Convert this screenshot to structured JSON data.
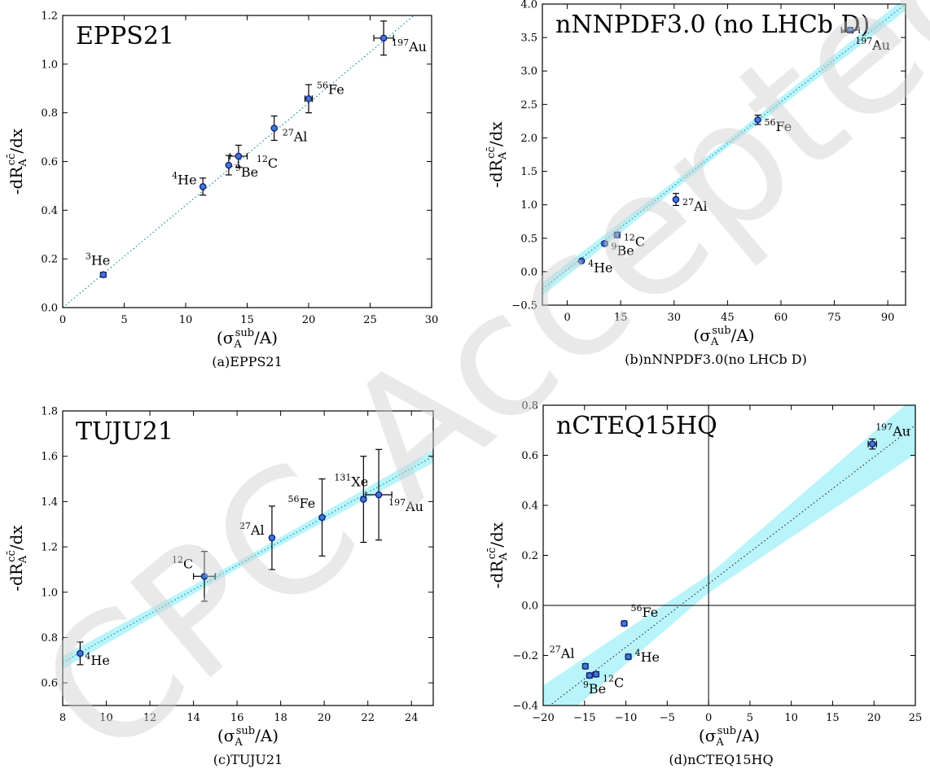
{
  "chart_data": [
    {
      "type": "scatter",
      "panel": "a",
      "title": "EPPS21",
      "caption": "(a)EPPS21",
      "xlabel": "(σ_A^sub/A)",
      "ylabel": "-dR_A^cc̄/dx",
      "xlim": [
        0,
        30
      ],
      "ylim": [
        0.0,
        1.2
      ],
      "xticks": [
        0,
        5,
        10,
        15,
        20,
        25,
        30
      ],
      "yticks": [
        0.0,
        0.2,
        0.4,
        0.6,
        0.8,
        1.0,
        1.2
      ],
      "fit_line": {
        "x": [
          0,
          30
        ],
        "y": [
          0.0,
          1.26
        ]
      },
      "band": false,
      "points": [
        {
          "label": "He",
          "mass": "3",
          "x": 3.3,
          "y": 0.135,
          "yerr": 0.01,
          "xerr": 0.0
        },
        {
          "label": "He",
          "mass": "4",
          "x": 11.4,
          "y": 0.497,
          "yerr": 0.035,
          "xerr": 0.0
        },
        {
          "label": "Be",
          "mass": "9",
          "x": 13.5,
          "y": 0.585,
          "yerr": 0.04,
          "xerr": 0.0
        },
        {
          "label": "C",
          "mass": "12",
          "x": 14.3,
          "y": 0.622,
          "yerr": 0.045,
          "xerr": 0.7
        },
        {
          "label": "Al",
          "mass": "27",
          "x": 17.2,
          "y": 0.737,
          "yerr": 0.05,
          "xerr": 0.0
        },
        {
          "label": "Fe",
          "mass": "56",
          "x": 20.0,
          "y": 0.858,
          "yerr": 0.058,
          "xerr": 0.3
        },
        {
          "label": "Au",
          "mass": "197",
          "x": 26.1,
          "y": 1.107,
          "yerr": 0.07,
          "xerr": 0.8
        }
      ]
    },
    {
      "type": "scatter",
      "panel": "b",
      "title": "nNNPDF3.0 (no LHCb D)",
      "caption": "(b)nNNPDF3.0(no LHCb D)",
      "xlabel": "(σ_A^sub/A)",
      "ylabel": "-dR_A^cc̄/dx",
      "xlim": [
        -7,
        95
      ],
      "ylim": [
        -0.5,
        4.0
      ],
      "xticks": [
        0,
        15,
        30,
        45,
        60,
        75,
        90
      ],
      "yticks": [
        -0.5,
        0.0,
        0.5,
        1.0,
        1.5,
        2.0,
        2.5,
        3.0,
        3.5,
        4.0
      ],
      "fit_line": {
        "x": [
          -7,
          95
        ],
        "y": [
          -0.26,
          4.0
        ]
      },
      "band": true,
      "points": [
        {
          "label": "He",
          "mass": "4",
          "x": 4.0,
          "y": 0.16,
          "yerr": 0.02,
          "xerr": 0.0
        },
        {
          "label": "Be",
          "mass": "9",
          "x": 10.5,
          "y": 0.42,
          "yerr": 0.03,
          "xerr": 0.0
        },
        {
          "label": "C",
          "mass": "12",
          "x": 14.0,
          "y": 0.55,
          "yerr": 0.04,
          "xerr": 0.0
        },
        {
          "label": "Al",
          "mass": "27",
          "x": 30.5,
          "y": 1.08,
          "yerr": 0.09,
          "xerr": 0.0
        },
        {
          "label": "Fe",
          "mass": "56",
          "x": 53.5,
          "y": 2.27,
          "yerr": 0.07,
          "xerr": 0.0
        },
        {
          "label": "Au",
          "mass": "197",
          "x": 79.5,
          "y": 3.61,
          "yerr": 0.04,
          "xerr": 2.5
        }
      ]
    },
    {
      "type": "scatter",
      "panel": "c",
      "title": "TUJU21",
      "caption": "(c)TUJU21",
      "xlabel": "(σ_A^sub/A)",
      "ylabel": "-dR_A^cc̄/dx",
      "xlim": [
        8,
        25
      ],
      "ylim": [
        0.5,
        1.8
      ],
      "xticks": [
        8,
        10,
        12,
        14,
        16,
        18,
        20,
        22,
        24
      ],
      "yticks": [
        0.6,
        0.8,
        1.0,
        1.2,
        1.4,
        1.6,
        1.8
      ],
      "fit_line": {
        "x": [
          8,
          25
        ],
        "y": [
          0.69,
          1.6
        ]
      },
      "band": true,
      "points": [
        {
          "label": "He",
          "mass": "4",
          "x": 8.8,
          "y": 0.73,
          "yerr": 0.05,
          "xerr": 0.0
        },
        {
          "label": "C",
          "mass": "12",
          "x": 14.5,
          "y": 1.07,
          "yerr": 0.11,
          "xerr": 0.5
        },
        {
          "label": "Al",
          "mass": "27",
          "x": 17.6,
          "y": 1.24,
          "yerr": 0.14,
          "xerr": 0.0
        },
        {
          "label": "Fe",
          "mass": "56",
          "x": 19.9,
          "y": 1.33,
          "yerr": 0.17,
          "xerr": 0.0
        },
        {
          "label": "Xe",
          "mass": "131",
          "x": 21.8,
          "y": 1.41,
          "yerr": 0.19,
          "xerr": 0.0
        },
        {
          "label": "Au",
          "mass": "197",
          "x": 22.5,
          "y": 1.43,
          "yerr": 0.2,
          "xerr": 0.6
        }
      ]
    },
    {
      "type": "scatter",
      "panel": "d",
      "title": "nCTEQ15HQ",
      "caption": "(d)nCTEQ15HQ",
      "xlabel": "(σ_A^sub/A)",
      "ylabel": "-dR_A^cc̄/dx",
      "xlim": [
        -20,
        25
      ],
      "ylim": [
        -0.4,
        0.8
      ],
      "xticks": [
        -20,
        -15,
        -10,
        -5,
        0,
        5,
        10,
        15,
        20,
        25
      ],
      "yticks": [
        -0.4,
        -0.2,
        0.0,
        0.2,
        0.4,
        0.6,
        0.8
      ],
      "fit_line": {
        "x": [
          -20,
          25
        ],
        "y": [
          -0.42,
          0.72
        ]
      },
      "band": true,
      "zero_lines": true,
      "points": [
        {
          "label": "He",
          "mass": "4",
          "x": -9.7,
          "y": -0.205,
          "yerr": 0.01,
          "xerr": 0.0
        },
        {
          "label": "Be",
          "mass": "9",
          "x": -14.4,
          "y": -0.28,
          "yerr": 0.01,
          "xerr": 0.0
        },
        {
          "label": "C",
          "mass": "12",
          "x": -13.6,
          "y": -0.275,
          "yerr": 0.01,
          "xerr": 0.0
        },
        {
          "label": "Al",
          "mass": "27",
          "x": -14.9,
          "y": -0.243,
          "yerr": 0.01,
          "xerr": 0.0
        },
        {
          "label": "Fe",
          "mass": "56",
          "x": -10.2,
          "y": -0.072,
          "yerr": 0.01,
          "xerr": 0.0
        },
        {
          "label": "Au",
          "mass": "197",
          "x": 19.8,
          "y": 0.645,
          "yerr": 0.02,
          "xerr": 0.5
        }
      ]
    }
  ],
  "watermark": "CPC Accepted",
  "colors": {
    "band": "#b9f4fb",
    "line": "#1a8aa0",
    "marker_edge": "#1a1a8c",
    "marker_fill": "#3a7fc8"
  }
}
